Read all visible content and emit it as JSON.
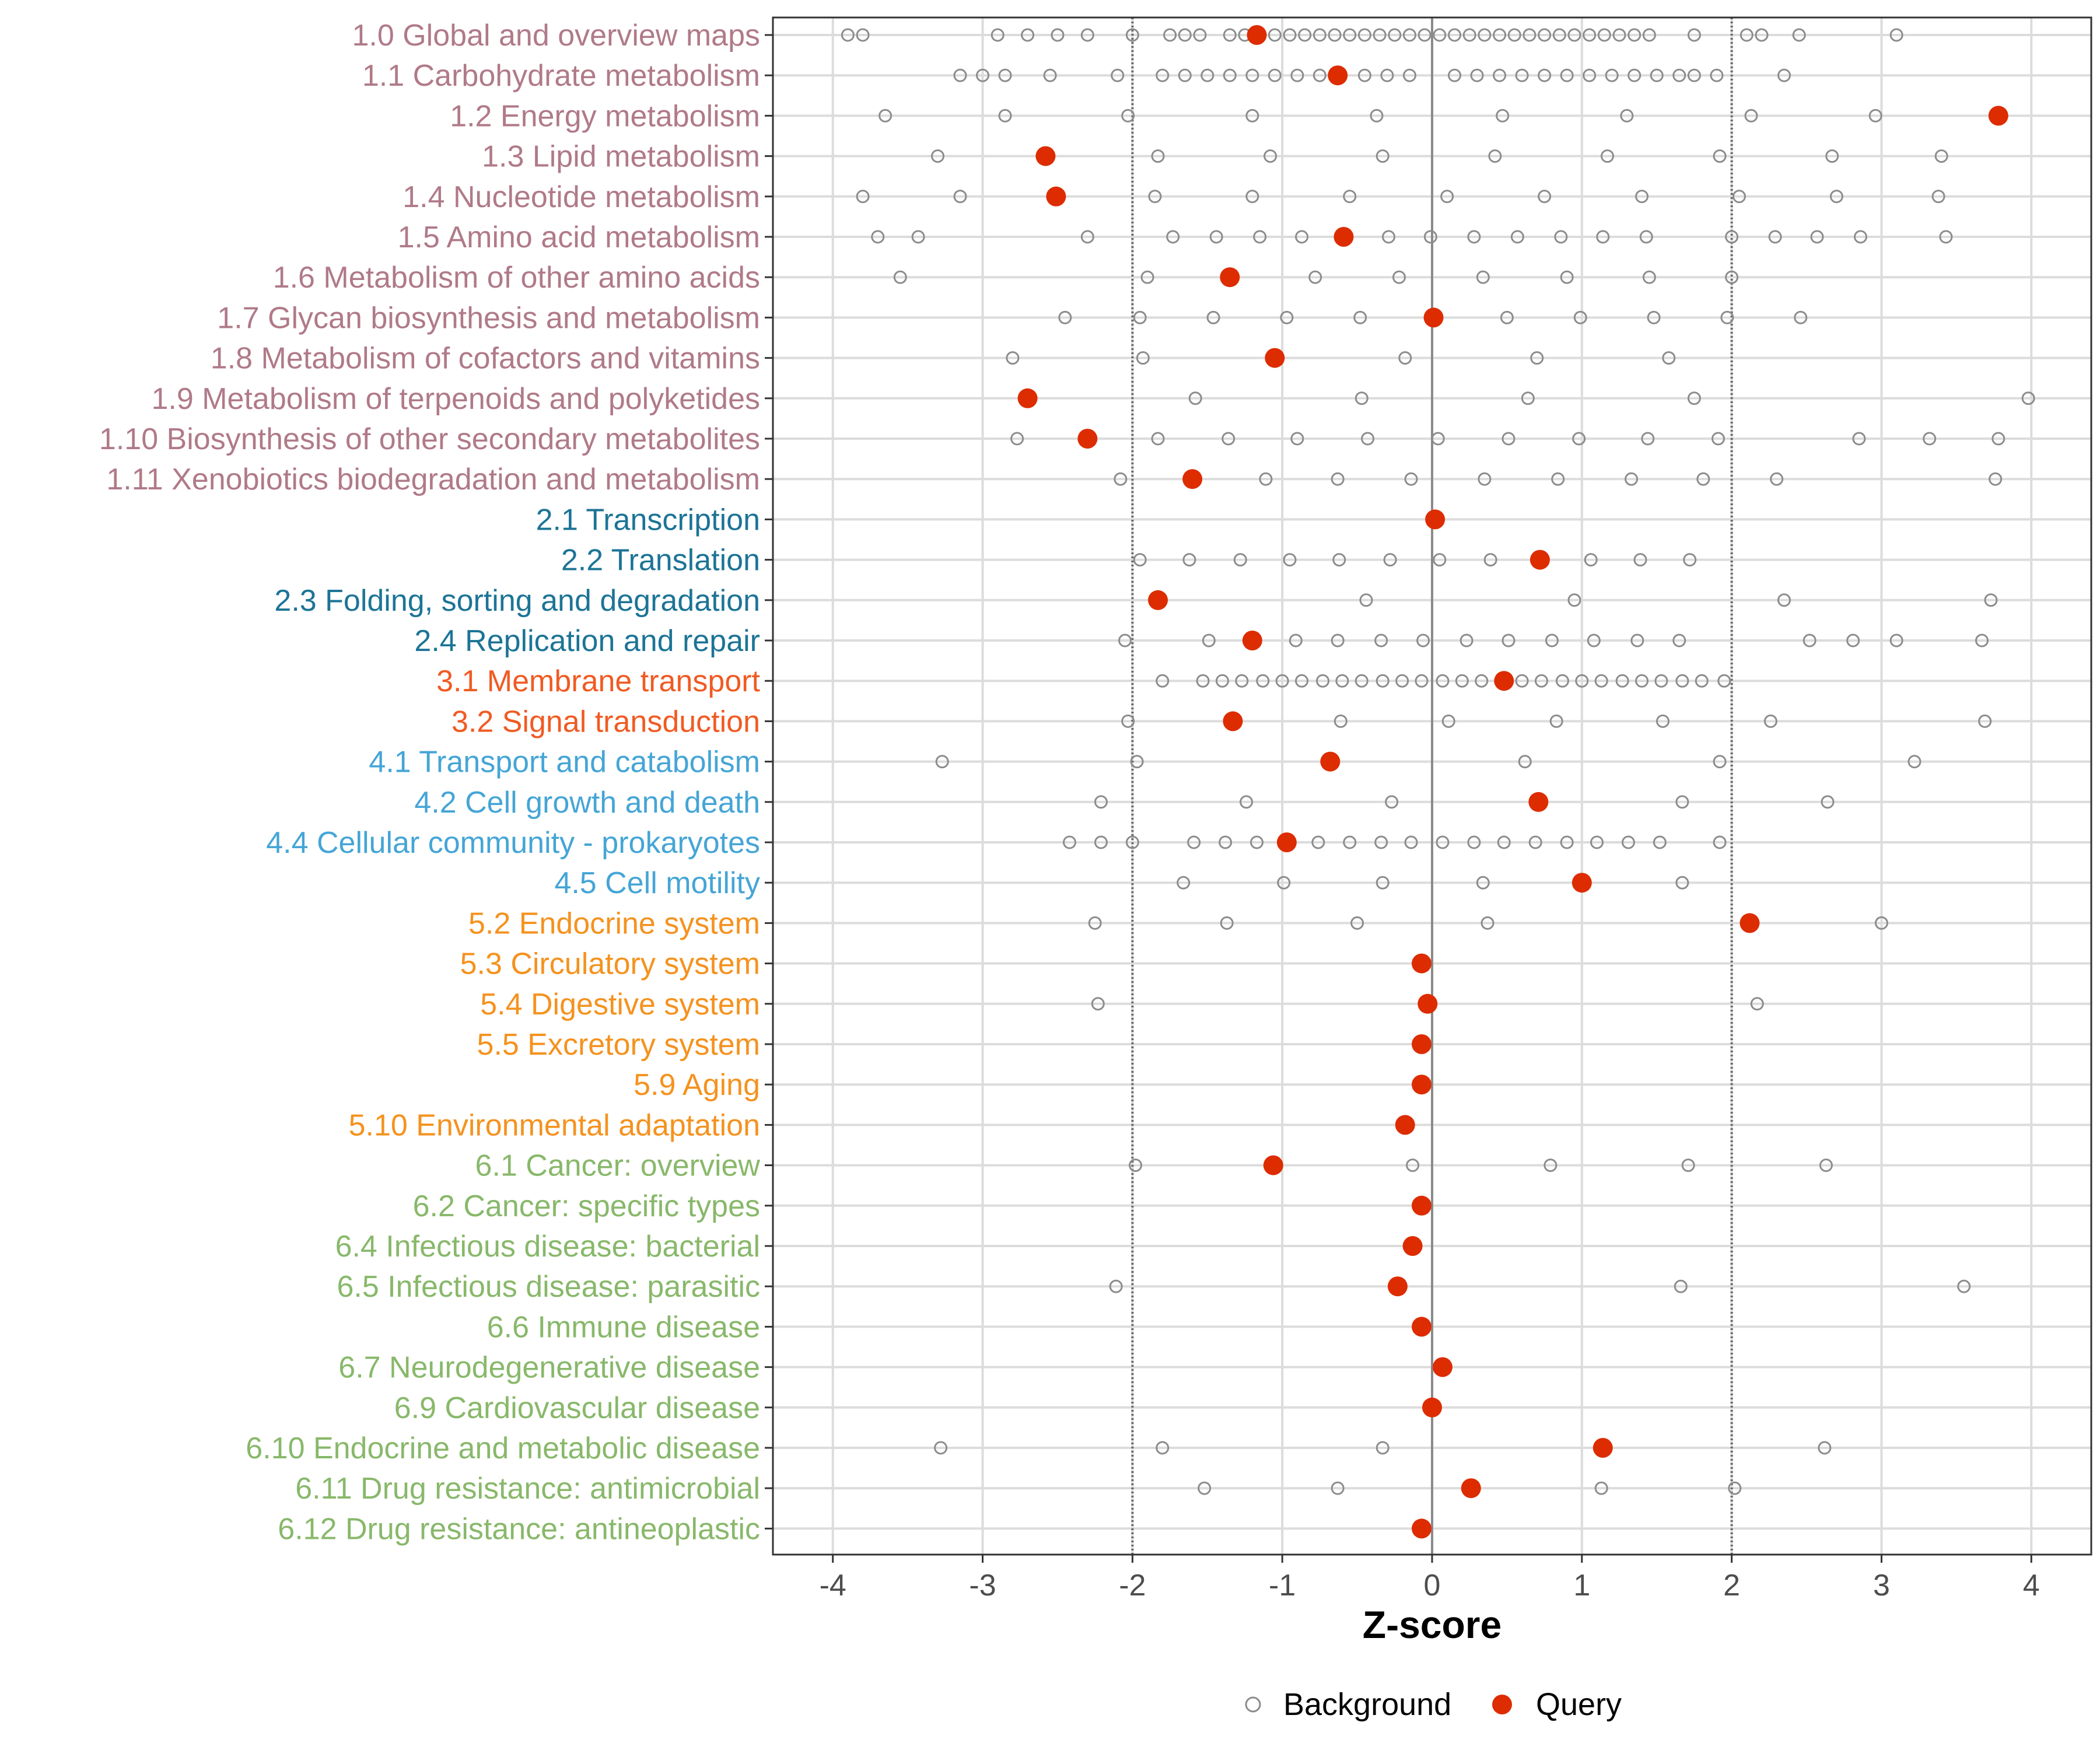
{
  "chart_data": {
    "type": "scatter",
    "xlabel": "Z-score",
    "xlim": [
      -4.4,
      4.4
    ],
    "xticks": [
      -4,
      -3,
      -2,
      -1,
      0,
      1,
      2,
      3,
      4
    ],
    "xtick_labels": [
      "-4",
      "-3",
      "-2",
      "-1",
      "0",
      "1",
      "2",
      "3",
      "4"
    ],
    "reference_lines": [
      -2,
      2
    ],
    "grid": true,
    "legend": {
      "position": "bottom",
      "entries": [
        {
          "name": "Background",
          "marker": "open-circle",
          "color": "#8c8c8c"
        },
        {
          "name": "Query",
          "marker": "filled-circle",
          "color": "#dd2c00"
        }
      ]
    },
    "group_colors": {
      "1": "#b07a88",
      "2": "#1c7496",
      "3": "#f15a22",
      "4": "#45a5d6",
      "5": "#f5921e",
      "6": "#88b86a"
    },
    "categories": [
      {
        "label": "1.0 Global and overview maps",
        "group": "1",
        "query": -1.17,
        "background": [
          -3.9,
          -3.8,
          -2.9,
          -2.7,
          -2.5,
          -2.3,
          -2.0,
          -1.75,
          -1.65,
          -1.55,
          -1.35,
          -1.25,
          -1.15,
          -1.05,
          -0.95,
          -0.85,
          -0.75,
          -0.65,
          -0.55,
          -0.45,
          -0.35,
          -0.25,
          -0.15,
          -0.05,
          0.05,
          0.15,
          0.25,
          0.35,
          0.45,
          0.55,
          0.65,
          0.75,
          0.85,
          0.95,
          1.05,
          1.15,
          1.25,
          1.35,
          1.45,
          1.75,
          2.1,
          2.2,
          2.45,
          3.1
        ]
      },
      {
        "label": "1.1 Carbohydrate metabolism",
        "group": "1",
        "query": -0.63,
        "background": [
          -3.15,
          -3.0,
          -2.85,
          -2.55,
          -2.1,
          -1.8,
          -1.65,
          -1.5,
          -1.35,
          -1.2,
          -1.05,
          -0.9,
          -0.75,
          -0.45,
          -0.3,
          -0.15,
          0.15,
          0.3,
          0.45,
          0.6,
          0.75,
          0.9,
          1.05,
          1.2,
          1.35,
          1.5,
          1.65,
          1.75,
          1.9,
          2.35
        ]
      },
      {
        "label": "1.2 Energy metabolism",
        "group": "1",
        "query": 3.78,
        "background": [
          -3.65,
          -2.85,
          -2.03,
          -1.2,
          -0.37,
          0.47,
          1.3,
          2.13,
          2.96
        ]
      },
      {
        "label": "1.3 Lipid metabolism",
        "group": "1",
        "query": -2.58,
        "background": [
          -3.3,
          -1.83,
          -1.08,
          -0.33,
          0.42,
          1.17,
          1.92,
          2.67,
          3.4
        ]
      },
      {
        "label": "1.4 Nucleotide metabolism",
        "group": "1",
        "query": -2.51,
        "background": [
          -3.8,
          -3.15,
          -1.85,
          -1.2,
          -0.55,
          0.1,
          0.75,
          1.4,
          2.05,
          2.7,
          3.38
        ]
      },
      {
        "label": "1.5 Amino acid metabolism",
        "group": "1",
        "query": -0.59,
        "background": [
          -3.7,
          -3.43,
          -2.3,
          -1.73,
          -1.44,
          -1.15,
          -0.87,
          -0.29,
          -0.01,
          0.28,
          0.57,
          0.86,
          1.14,
          1.43,
          2.0,
          2.29,
          2.57,
          2.86,
          3.43
        ]
      },
      {
        "label": "1.6 Metabolism of other amino acids",
        "group": "1",
        "query": -1.35,
        "background": [
          -3.55,
          -1.9,
          -0.78,
          -0.22,
          0.34,
          0.9,
          1.45,
          2.0
        ]
      },
      {
        "label": "1.7 Glycan biosynthesis and metabolism",
        "group": "1",
        "query": 0.01,
        "background": [
          -2.45,
          -1.95,
          -1.46,
          -0.97,
          -0.48,
          0.5,
          0.99,
          1.48,
          1.97,
          2.46
        ]
      },
      {
        "label": "1.8 Metabolism of cofactors and vitamins",
        "group": "1",
        "query": -1.05,
        "background": [
          -2.8,
          -1.93,
          -0.18,
          0.7,
          1.58
        ]
      },
      {
        "label": "1.9 Metabolism of terpenoids and polyketides",
        "group": "1",
        "query": -2.7,
        "background": [
          -1.58,
          -0.47,
          0.64,
          1.75,
          3.98
        ]
      },
      {
        "label": "1.10 Biosynthesis of other secondary metabolites",
        "group": "1",
        "query": -2.3,
        "background": [
          -2.77,
          -1.83,
          -1.36,
          -0.9,
          -0.43,
          0.04,
          0.51,
          0.98,
          1.44,
          1.91,
          2.85,
          3.32,
          3.78
        ]
      },
      {
        "label": "1.11 Xenobiotics biodegradation and metabolism",
        "group": "1",
        "query": -1.6,
        "background": [
          -2.08,
          -1.11,
          -0.63,
          -0.14,
          0.35,
          0.84,
          1.33,
          1.81,
          2.3,
          3.76
        ]
      },
      {
        "label": "2.1 Transcription",
        "group": "2",
        "query": 0.02,
        "background": []
      },
      {
        "label": "2.2 Translation",
        "group": "2",
        "query": 0.72,
        "background": [
          -1.95,
          -1.62,
          -1.28,
          -0.95,
          -0.62,
          -0.28,
          0.05,
          0.39,
          1.06,
          1.39,
          1.72
        ]
      },
      {
        "label": "2.3 Folding, sorting and degradation",
        "group": "2",
        "query": -1.83,
        "background": [
          -0.44,
          0.95,
          2.35,
          3.73
        ]
      },
      {
        "label": "2.4 Replication and repair",
        "group": "2",
        "query": -1.2,
        "background": [
          -2.05,
          -1.49,
          -0.91,
          -0.63,
          -0.34,
          -0.06,
          0.23,
          0.51,
          0.8,
          1.08,
          1.37,
          1.65,
          2.52,
          2.81,
          3.1,
          3.67
        ]
      },
      {
        "label": "3.1 Membrane transport",
        "group": "3",
        "query": 0.48,
        "background": [
          -1.8,
          -1.53,
          -1.4,
          -1.27,
          -1.13,
          -1.0,
          -0.87,
          -0.73,
          -0.6,
          -0.47,
          -0.33,
          -0.2,
          -0.07,
          0.07,
          0.2,
          0.33,
          0.6,
          0.73,
          0.87,
          1.0,
          1.13,
          1.27,
          1.4,
          1.53,
          1.67,
          1.8,
          1.95
        ]
      },
      {
        "label": "3.2 Signal transduction",
        "group": "3",
        "query": -1.33,
        "background": [
          -2.03,
          -0.61,
          0.11,
          0.83,
          1.54,
          2.26,
          3.69
        ]
      },
      {
        "label": "4.1 Transport and catabolism",
        "group": "4",
        "query": -0.68,
        "background": [
          -3.27,
          -1.97,
          0.62,
          1.92,
          3.22
        ]
      },
      {
        "label": "4.2 Cell growth and death",
        "group": "4",
        "query": 0.71,
        "background": [
          -2.21,
          -1.24,
          -0.27,
          1.67,
          2.64
        ]
      },
      {
        "label": "4.4 Cellular community - prokaryotes",
        "group": "4",
        "query": -0.97,
        "background": [
          -2.42,
          -2.21,
          -2.0,
          -1.59,
          -1.38,
          -1.17,
          -0.76,
          -0.55,
          -0.34,
          -0.14,
          0.07,
          0.28,
          0.48,
          0.69,
          0.9,
          1.1,
          1.31,
          1.52,
          1.92
        ]
      },
      {
        "label": "4.5 Cell motility",
        "group": "4",
        "query": 1.0,
        "background": [
          -1.66,
          -0.99,
          -0.33,
          0.34,
          1.67
        ]
      },
      {
        "label": "5.2 Endocrine system",
        "group": "5",
        "query": 2.12,
        "background": [
          -2.25,
          -1.37,
          -0.5,
          0.37,
          3.0
        ]
      },
      {
        "label": "5.3 Circulatory system",
        "group": "5",
        "query": -0.07,
        "background": []
      },
      {
        "label": "5.4 Digestive system",
        "group": "5",
        "query": -0.03,
        "background": [
          -2.23,
          2.17
        ]
      },
      {
        "label": "5.5 Excretory system",
        "group": "5",
        "query": -0.07,
        "background": []
      },
      {
        "label": "5.9 Aging",
        "group": "5",
        "query": -0.07,
        "background": []
      },
      {
        "label": "5.10 Environmental adaptation",
        "group": "5",
        "query": -0.18,
        "background": []
      },
      {
        "label": "6.1 Cancer: overview",
        "group": "6",
        "query": -1.06,
        "background": [
          -1.98,
          -0.13,
          0.79,
          1.71,
          2.63
        ]
      },
      {
        "label": "6.2 Cancer: specific types",
        "group": "6",
        "query": -0.07,
        "background": []
      },
      {
        "label": "6.4 Infectious disease: bacterial",
        "group": "6",
        "query": -0.13,
        "background": []
      },
      {
        "label": "6.5 Infectious disease: parasitic",
        "group": "6",
        "query": -0.23,
        "background": [
          -2.11,
          1.66,
          3.55
        ]
      },
      {
        "label": "6.6 Immune disease",
        "group": "6",
        "query": -0.07,
        "background": []
      },
      {
        "label": "6.7 Neurodegenerative disease",
        "group": "6",
        "query": 0.07,
        "background": []
      },
      {
        "label": "6.9 Cardiovascular disease",
        "group": "6",
        "query": 0.0,
        "background": []
      },
      {
        "label": "6.10 Endocrine and metabolic disease",
        "group": "6",
        "query": 1.14,
        "background": [
          -3.28,
          -1.8,
          -0.33,
          2.62
        ]
      },
      {
        "label": "6.11 Drug resistance: antimicrobial",
        "group": "6",
        "query": 0.26,
        "background": [
          -1.52,
          -0.63,
          1.13,
          2.02
        ]
      },
      {
        "label": "6.12 Drug resistance: antineoplastic",
        "group": "6",
        "query": -0.07,
        "background": []
      }
    ]
  }
}
